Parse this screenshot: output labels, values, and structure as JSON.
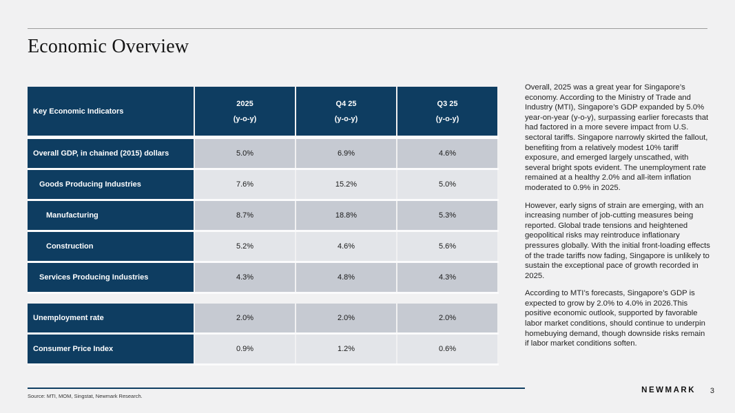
{
  "header": {
    "title": "Economic Overview"
  },
  "table": {
    "header": {
      "label": "Key Economic Indicators",
      "cols": [
        {
          "period": "2025",
          "unit": "(y-o-y)"
        },
        {
          "period": "Q4 25",
          "unit": "(y-o-y)"
        },
        {
          "period": "Q3 25",
          "unit": "(y-o-y)"
        }
      ]
    },
    "rows": [
      {
        "label": "Overall GDP, in chained (2015) dollars",
        "values": [
          "5.0%",
          "6.9%",
          "4.6%"
        ]
      },
      {
        "label": "Goods Producing Industries",
        "values": [
          "7.6%",
          "15.2%",
          "5.0%"
        ]
      },
      {
        "label": "Manufacturing",
        "values": [
          "8.7%",
          "18.8%",
          "5.3%"
        ]
      },
      {
        "label": "Construction",
        "values": [
          "5.2%",
          "4.6%",
          "5.6%"
        ]
      },
      {
        "label": "Services Producing Industries",
        "values": [
          "4.3%",
          "4.8%",
          "4.3%"
        ]
      },
      {
        "label": "Unemployment rate",
        "values": [
          "2.0%",
          "2.0%",
          "2.0%"
        ]
      },
      {
        "label": "Consumer Price Index",
        "values": [
          "0.9%",
          "1.2%",
          "0.6%"
        ]
      }
    ]
  },
  "commentary": {
    "paragraphs": [
      "Overall, 2025 was a great year for Singapore’s economy. According to the Ministry of Trade and Industry (MTI), Singapore’s GDP expanded by 5.0% year-on-year (y-o-y), surpassing earlier forecasts that had factored in a more severe impact from U.S. sectoral tariffs. Singapore narrowly skirted the fallout, benefiting from a relatively modest 10% tariff exposure, and emerged largely unscathed, with several bright spots evident. The unemployment rate remained at a healthy 2.0% and all-item inflation moderated to 0.9% in 2025.",
      "However, early signs of strain are emerging, with an increasing number of job-cutting measures being reported. Global trade tensions and heightened geopolitical risks may reintroduce inflationary pressures globally. With the initial front-loading effects of the trade tariffs now fading, Singapore is unlikely to sustain the exceptional pace of growth recorded in 2025.",
      "According to MTI’s forecasts, Singapore’s GDP is expected to grow by 2.0% to 4.0% in 2026.This positive economic outlook, supported by favorable labor market conditions, should continue to underpin homebuying demand, though downside risks remain if labor market conditions soften."
    ]
  },
  "footer": {
    "source": "Source: MTI, MOM, Singstat, Newmark Research.",
    "brand": "NEWMARK",
    "page_number": "3"
  },
  "colors": {
    "navy": "#0e3d61",
    "cell_dark": "#c6cad2",
    "cell_light": "#e3e5e9",
    "background": "#f1f1f2"
  }
}
